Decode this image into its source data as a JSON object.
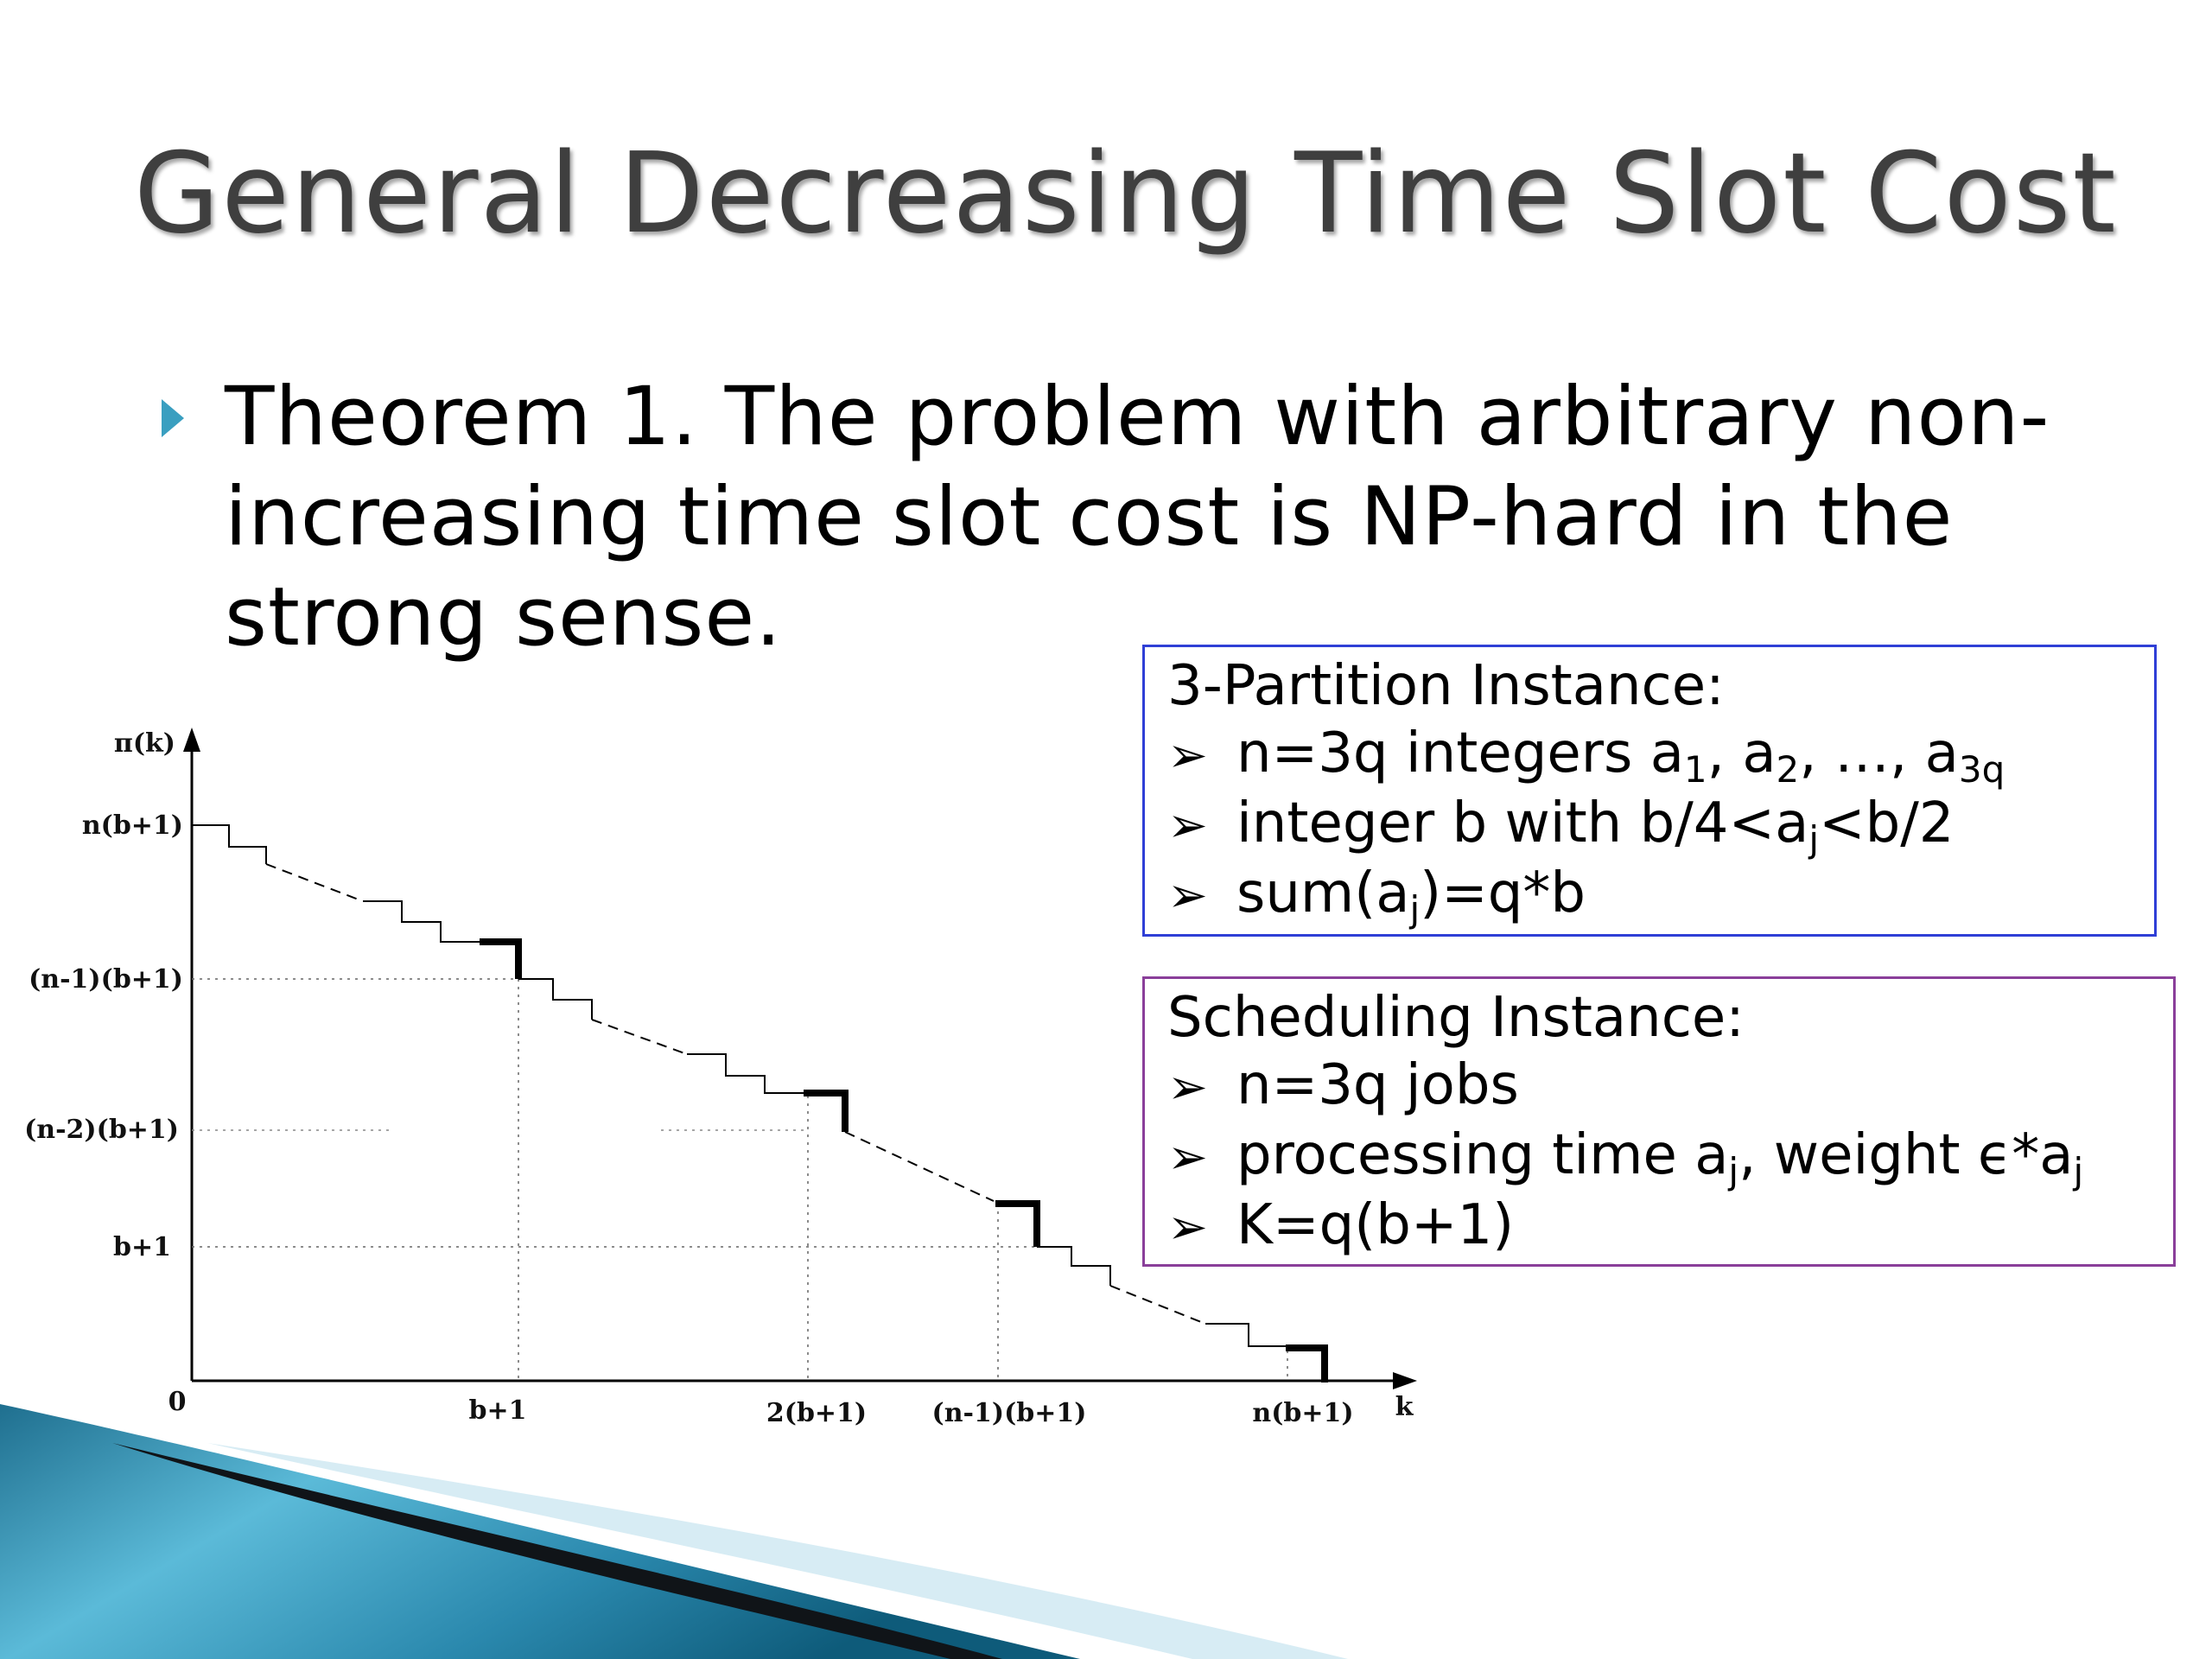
{
  "slide": {
    "title": "General Decreasing Time Slot Cost",
    "theorem_text": "Theorem 1. The problem with arbitrary non-increasing time slot cost is NP-hard in the strong sense."
  },
  "partition_box": {
    "heading": "3-Partition Instance:",
    "items": [
      {
        "prefix": "n=3q integers a",
        "s1": "1",
        "m1": ", a",
        "s2": "2",
        "m2": ", …, a",
        "s3": "3q"
      },
      {
        "prefix": "integer b with b/4<a",
        "s1": "j",
        "m1": "<b/2"
      },
      {
        "prefix": "sum(a",
        "s1": "j",
        "m1": ")=q*b"
      }
    ]
  },
  "sched_box": {
    "heading": "Scheduling Instance:",
    "items": [
      {
        "text": "n=3q jobs"
      },
      {
        "prefix": "processing time a",
        "s1": "j",
        "m1": ", weight ϵ*a",
        "s2": "j"
      },
      {
        "text": "K=q(b+1)"
      }
    ]
  },
  "chart_data": {
    "type": "line",
    "title": "",
    "xlabel": "k",
    "ylabel": "π(k)",
    "origin_label": "0",
    "x_ticks": [
      "b+1",
      "2(b+1)",
      "(n-1)(b+1)",
      "n(b+1)"
    ],
    "y_ticks": [
      "n(b+1)",
      "(n-1)(b+1)",
      "(n-2)(b+1)",
      "b+1"
    ],
    "description": "non-increasing staircase cost function with bold drops at multiples of (b+1)"
  },
  "colors": {
    "title": "#3f3f3f",
    "bullet": "#3a9fc0",
    "partition_border": "#2f3fd6",
    "sched_border": "#8a3f9a"
  },
  "icons": {
    "bullet": "triangle-bullet-icon",
    "list_marker": "chevron-arrow-icon"
  }
}
